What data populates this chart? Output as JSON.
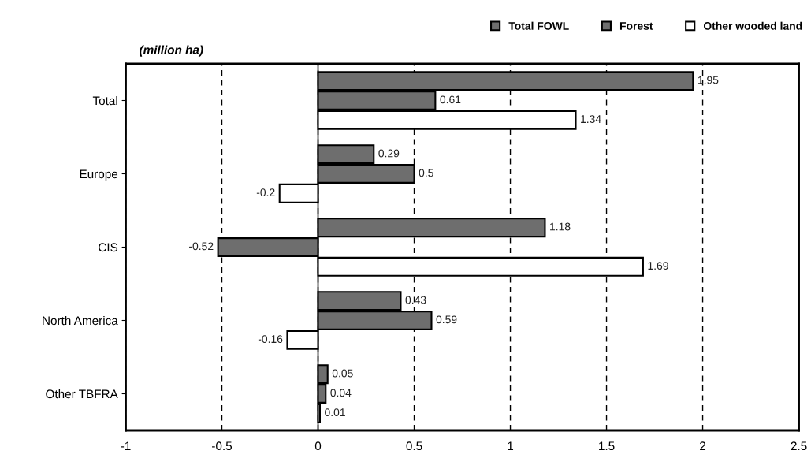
{
  "chart_data": {
    "type": "bar",
    "orientation": "horizontal",
    "annotations": [
      "(million ha)"
    ],
    "categories": [
      "Total",
      "Europe",
      "CIS",
      "North America",
      "Other TBFRA"
    ],
    "series": [
      {
        "name": "Total FOWL",
        "color": "#6e6e6e",
        "values": [
          1.95,
          0.29,
          1.18,
          0.43,
          0.05
        ]
      },
      {
        "name": "Forest",
        "color": "#6e6e6e",
        "values": [
          0.61,
          0.5,
          -0.52,
          0.59,
          0.04
        ]
      },
      {
        "name": "Other wooded land",
        "color": "#ffffff",
        "values": [
          1.34,
          -0.2,
          1.69,
          -0.16,
          0.01
        ]
      }
    ],
    "xlim": [
      -1,
      2.5
    ],
    "xticks": [
      -1,
      -0.5,
      0,
      0.5,
      1,
      1.5,
      2,
      2.5
    ],
    "grid": "x",
    "line_style": "dashed",
    "legend": "top right",
    "data_labels": true,
    "ref_lines": [
      {
        "axis": "x",
        "value": 0,
        "color": "#000000",
        "line_style": "solid"
      }
    ]
  }
}
